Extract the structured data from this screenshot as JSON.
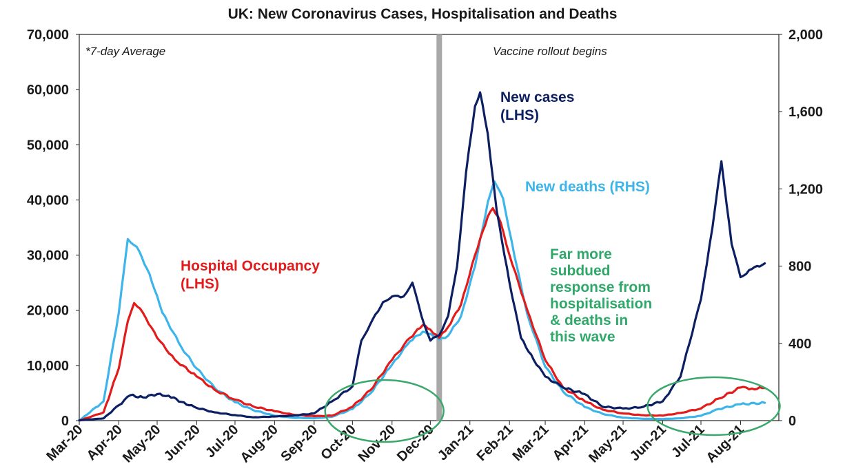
{
  "colors": {
    "cases": "#0d1f63",
    "hospital": "#e21b1b",
    "deaths": "#3db5ea",
    "ring": "#3aa86b",
    "annotation_green": "#2fa86a",
    "rollout_line": "#a8a8a8"
  },
  "chart_data": {
    "type": "line",
    "title": "UK: New Coronavirus Cases, Hospitalisation and Deaths",
    "note": "*7-day Average",
    "event_label": "Vaccine rollout begins",
    "event_date": "2020-12-08",
    "x_tick_labels": [
      "Mar-20",
      "Apr-20",
      "May-20",
      "Jun-20",
      "Jul-20",
      "Aug-20",
      "Sep-20",
      "Oct-20",
      "Nov-20",
      "Dec-20",
      "Jan-21",
      "Feb-21",
      "Mar-21",
      "Apr-21",
      "May-21",
      "Jun-21",
      "Jul-21",
      "Aug-21"
    ],
    "x_tick_dates": [
      "2020-03-01",
      "2020-04-01",
      "2020-05-01",
      "2020-06-01",
      "2020-07-01",
      "2020-08-01",
      "2020-09-01",
      "2020-10-01",
      "2020-11-01",
      "2020-12-01",
      "2021-01-01",
      "2021-02-01",
      "2021-03-01",
      "2021-04-01",
      "2021-05-01",
      "2021-06-01",
      "2021-07-01",
      "2021-08-01"
    ],
    "xlim": [
      "2020-03-01",
      "2021-08-31"
    ],
    "y_left": {
      "label": "",
      "ylim": [
        0,
        70000
      ],
      "ticks": [
        "0",
        "10,000",
        "20,000",
        "30,000",
        "40,000",
        "50,000",
        "60,000",
        "70,000"
      ]
    },
    "y_right": {
      "label": "",
      "ylim": [
        0,
        2000
      ],
      "ticks": [
        "0",
        "400",
        "800",
        "1,200",
        "1,600",
        "2,000"
      ]
    },
    "grid": false,
    "series": [
      {
        "name": "New cases (LHS)",
        "axis": "left",
        "color_key": "cases",
        "points": [
          [
            "2020-03-01",
            50
          ],
          [
            "2020-03-20",
            400
          ],
          [
            "2020-04-01",
            2800
          ],
          [
            "2020-04-10",
            4600
          ],
          [
            "2020-04-20",
            4200
          ],
          [
            "2020-05-01",
            4800
          ],
          [
            "2020-05-10",
            4500
          ],
          [
            "2020-05-20",
            3400
          ],
          [
            "2020-06-01",
            2300
          ],
          [
            "2020-06-15",
            1500
          ],
          [
            "2020-07-01",
            1000
          ],
          [
            "2020-07-15",
            600
          ],
          [
            "2020-08-01",
            750
          ],
          [
            "2020-08-15",
            900
          ],
          [
            "2020-09-01",
            1300
          ],
          [
            "2020-09-15",
            3500
          ],
          [
            "2020-10-01",
            6200
          ],
          [
            "2020-10-08",
            14500
          ],
          [
            "2020-10-15",
            17500
          ],
          [
            "2020-10-25",
            21500
          ],
          [
            "2020-11-01",
            22500
          ],
          [
            "2020-11-10",
            22500
          ],
          [
            "2020-11-17",
            25000
          ],
          [
            "2020-11-24",
            19000
          ],
          [
            "2020-12-01",
            14500
          ],
          [
            "2020-12-08",
            15500
          ],
          [
            "2020-12-15",
            19000
          ],
          [
            "2020-12-22",
            28000
          ],
          [
            "2020-12-29",
            45000
          ],
          [
            "2021-01-05",
            57000
          ],
          [
            "2021-01-09",
            59500
          ],
          [
            "2021-01-15",
            52000
          ],
          [
            "2021-01-22",
            38000
          ],
          [
            "2021-02-01",
            25000
          ],
          [
            "2021-02-10",
            15000
          ],
          [
            "2021-02-20",
            11000
          ],
          [
            "2021-03-01",
            8000
          ],
          [
            "2021-03-15",
            6000
          ],
          [
            "2021-04-01",
            4800
          ],
          [
            "2021-04-15",
            2500
          ],
          [
            "2021-05-01",
            2200
          ],
          [
            "2021-05-15",
            2400
          ],
          [
            "2021-06-01",
            3500
          ],
          [
            "2021-06-15",
            8000
          ],
          [
            "2021-07-01",
            22000
          ],
          [
            "2021-07-10",
            35000
          ],
          [
            "2021-07-17",
            47000
          ],
          [
            "2021-07-25",
            32000
          ],
          [
            "2021-08-01",
            26000
          ],
          [
            "2021-08-10",
            27500
          ],
          [
            "2021-08-20",
            28500
          ]
        ]
      },
      {
        "name": "Hospital Occupancy (LHS)",
        "axis": "left",
        "color_key": "hospital",
        "points": [
          [
            "2020-03-01",
            0
          ],
          [
            "2020-03-20",
            1500
          ],
          [
            "2020-04-01",
            9500
          ],
          [
            "2020-04-08",
            18000
          ],
          [
            "2020-04-13",
            21300
          ],
          [
            "2020-04-20",
            19500
          ],
          [
            "2020-05-01",
            15000
          ],
          [
            "2020-05-15",
            11000
          ],
          [
            "2020-06-01",
            8000
          ],
          [
            "2020-06-15",
            5600
          ],
          [
            "2020-07-01",
            3800
          ],
          [
            "2020-07-15",
            2600
          ],
          [
            "2020-08-01",
            1700
          ],
          [
            "2020-08-15",
            1100
          ],
          [
            "2020-09-01",
            800
          ],
          [
            "2020-09-15",
            900
          ],
          [
            "2020-10-01",
            2500
          ],
          [
            "2020-10-15",
            5500
          ],
          [
            "2020-11-01",
            11000
          ],
          [
            "2020-11-15",
            15000
          ],
          [
            "2020-11-25",
            17300
          ],
          [
            "2020-12-01",
            16500
          ],
          [
            "2020-12-08",
            15000
          ],
          [
            "2020-12-15",
            17000
          ],
          [
            "2020-12-25",
            21000
          ],
          [
            "2021-01-05",
            30000
          ],
          [
            "2021-01-15",
            37000
          ],
          [
            "2021-01-19",
            38500
          ],
          [
            "2021-01-25",
            36000
          ],
          [
            "2021-02-01",
            30000
          ],
          [
            "2021-02-15",
            20000
          ],
          [
            "2021-03-01",
            11000
          ],
          [
            "2021-03-15",
            6000
          ],
          [
            "2021-04-01",
            3500
          ],
          [
            "2021-04-15",
            2000
          ],
          [
            "2021-05-01",
            1300
          ],
          [
            "2021-05-15",
            1000
          ],
          [
            "2021-06-01",
            900
          ],
          [
            "2021-06-15",
            1400
          ],
          [
            "2021-07-01",
            2200
          ],
          [
            "2021-07-15",
            4000
          ],
          [
            "2021-08-01",
            6000
          ],
          [
            "2021-08-10",
            5800
          ],
          [
            "2021-08-20",
            5900
          ]
        ]
      },
      {
        "name": "New deaths (RHS)",
        "axis": "right",
        "color_key": "deaths",
        "points": [
          [
            "2020-03-01",
            0
          ],
          [
            "2020-03-20",
            100
          ],
          [
            "2020-04-01",
            560
          ],
          [
            "2020-04-08",
            940
          ],
          [
            "2020-04-15",
            900
          ],
          [
            "2020-04-25",
            760
          ],
          [
            "2020-05-05",
            560
          ],
          [
            "2020-05-20",
            380
          ],
          [
            "2020-06-01",
            270
          ],
          [
            "2020-06-15",
            170
          ],
          [
            "2020-07-01",
            95
          ],
          [
            "2020-07-15",
            55
          ],
          [
            "2020-08-01",
            25
          ],
          [
            "2020-08-15",
            15
          ],
          [
            "2020-09-01",
            12
          ],
          [
            "2020-09-15",
            20
          ],
          [
            "2020-10-01",
            60
          ],
          [
            "2020-10-15",
            140
          ],
          [
            "2020-11-01",
            290
          ],
          [
            "2020-11-15",
            410
          ],
          [
            "2020-11-25",
            460
          ],
          [
            "2020-12-01",
            450
          ],
          [
            "2020-12-08",
            420
          ],
          [
            "2020-12-15",
            440
          ],
          [
            "2020-12-25",
            540
          ],
          [
            "2021-01-05",
            800
          ],
          [
            "2021-01-15",
            1130
          ],
          [
            "2021-01-20",
            1240
          ],
          [
            "2021-01-27",
            1150
          ],
          [
            "2021-02-05",
            850
          ],
          [
            "2021-02-15",
            550
          ],
          [
            "2021-03-01",
            280
          ],
          [
            "2021-03-15",
            150
          ],
          [
            "2021-04-01",
            70
          ],
          [
            "2021-04-15",
            35
          ],
          [
            "2021-05-01",
            15
          ],
          [
            "2021-05-15",
            10
          ],
          [
            "2021-06-01",
            8
          ],
          [
            "2021-06-15",
            12
          ],
          [
            "2021-07-01",
            25
          ],
          [
            "2021-07-15",
            60
          ],
          [
            "2021-08-01",
            85
          ],
          [
            "2021-08-20",
            92
          ]
        ]
      }
    ],
    "annotations": [
      {
        "lines": [
          "New cases",
          "(LHS)"
        ],
        "color_key": "cases"
      },
      {
        "lines": [
          "New deaths (RHS)"
        ],
        "color_key": "deaths"
      },
      {
        "lines": [
          "Hospital Occupancy",
          "(LHS)"
        ],
        "color_key": "hospital"
      },
      {
        "lines": [
          "Far more",
          "subdued",
          "response from",
          "hospitalisation",
          "& deaths in",
          "this wave"
        ],
        "color_key": "annotation_green"
      }
    ]
  }
}
